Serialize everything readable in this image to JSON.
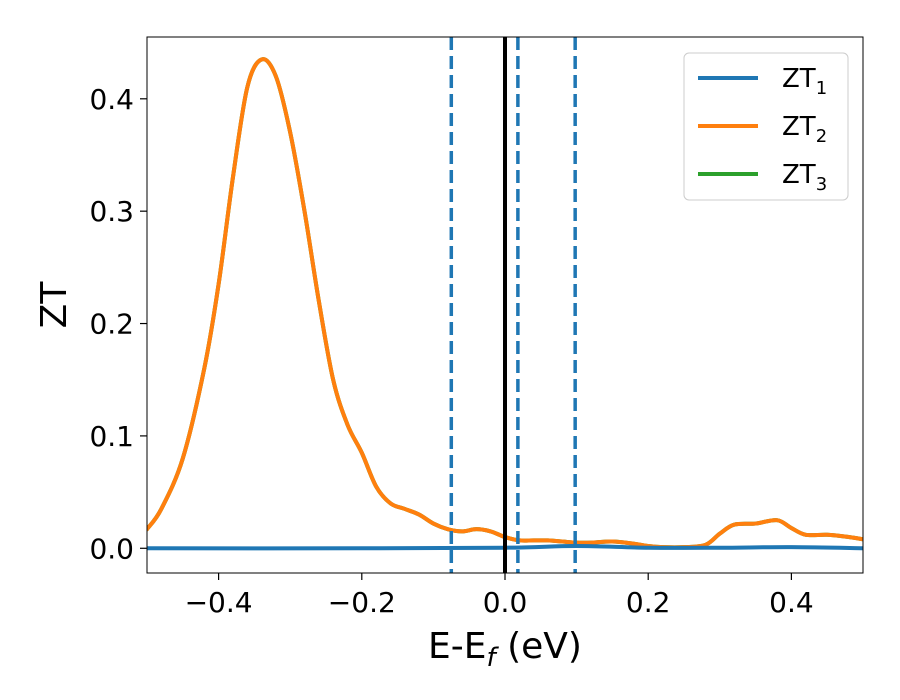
{
  "chart_data": {
    "type": "line",
    "xlabel_main": "E-E",
    "xlabel_sub": "f",
    "xlabel_unit": " (eV)",
    "ylabel": "ZT",
    "xlim": [
      -0.5,
      0.5
    ],
    "ylim": [
      -0.022,
      0.455
    ],
    "x_ticks": [
      {
        "value": -0.4,
        "label": "−0.4"
      },
      {
        "value": -0.2,
        "label": "−0.2"
      },
      {
        "value": 0.0,
        "label": "0.0"
      },
      {
        "value": 0.2,
        "label": "0.2"
      },
      {
        "value": 0.4,
        "label": "0.4"
      }
    ],
    "y_ticks": [
      {
        "value": 0.0,
        "label": "0.0"
      },
      {
        "value": 0.1,
        "label": "0.1"
      },
      {
        "value": 0.2,
        "label": "0.2"
      },
      {
        "value": 0.3,
        "label": "0.3"
      },
      {
        "value": 0.4,
        "label": "0.4"
      }
    ],
    "grid": false,
    "legend_position": "top-right",
    "series": [
      {
        "name_main": "ZT",
        "name_sub": "1",
        "color": "#1f77b4",
        "x": [
          -0.5,
          -0.2,
          0.0,
          0.1,
          0.2,
          0.3,
          0.4,
          0.5
        ],
        "y": [
          0.0,
          0.0,
          0.0005,
          0.002,
          0.0005,
          0.0005,
          0.001,
          0.0
        ]
      },
      {
        "name_main": "ZT",
        "name_sub": "2",
        "color": "#ff7f0e",
        "x": [
          -0.5,
          -0.48,
          -0.45,
          -0.42,
          -0.4,
          -0.38,
          -0.36,
          -0.34,
          -0.32,
          -0.3,
          -0.28,
          -0.26,
          -0.24,
          -0.22,
          -0.2,
          -0.18,
          -0.16,
          -0.14,
          -0.12,
          -0.1,
          -0.08,
          -0.06,
          -0.04,
          -0.02,
          0.0,
          0.02,
          0.04,
          0.06,
          0.08,
          0.1,
          0.12,
          0.15,
          0.18,
          0.2,
          0.22,
          0.25,
          0.28,
          0.3,
          0.32,
          0.35,
          0.38,
          0.4,
          0.42,
          0.45,
          0.48,
          0.5
        ],
        "y": [
          0.017,
          0.035,
          0.08,
          0.16,
          0.235,
          0.33,
          0.41,
          0.435,
          0.42,
          0.37,
          0.3,
          0.22,
          0.15,
          0.11,
          0.085,
          0.055,
          0.04,
          0.035,
          0.03,
          0.022,
          0.017,
          0.015,
          0.017,
          0.015,
          0.01,
          0.007,
          0.007,
          0.007,
          0.006,
          0.005,
          0.005,
          0.006,
          0.004,
          0.002,
          0.001,
          0.001,
          0.003,
          0.013,
          0.021,
          0.022,
          0.025,
          0.018,
          0.012,
          0.012,
          0.01,
          0.008
        ]
      },
      {
        "name_main": "ZT",
        "name_sub": "3",
        "color": "#2ca02c",
        "x": [
          -0.5,
          -0.48,
          -0.45,
          -0.42,
          -0.4,
          -0.38,
          -0.36,
          -0.34,
          -0.32,
          -0.3,
          -0.28,
          -0.26,
          -0.24,
          -0.22,
          -0.2,
          -0.18,
          -0.16,
          -0.14,
          -0.12,
          -0.1,
          -0.08,
          -0.06,
          -0.04,
          -0.02,
          0.0,
          0.02,
          0.04,
          0.06,
          0.08,
          0.1,
          0.12,
          0.15,
          0.18,
          0.2,
          0.22,
          0.25,
          0.28,
          0.3,
          0.32,
          0.35,
          0.38,
          0.4,
          0.42,
          0.45,
          0.48,
          0.5
        ],
        "y": [
          0.017,
          0.035,
          0.08,
          0.16,
          0.235,
          0.33,
          0.41,
          0.435,
          0.42,
          0.37,
          0.3,
          0.22,
          0.15,
          0.11,
          0.085,
          0.055,
          0.04,
          0.035,
          0.03,
          0.022,
          0.017,
          0.015,
          0.017,
          0.015,
          0.01,
          0.007,
          0.007,
          0.007,
          0.006,
          0.005,
          0.005,
          0.006,
          0.004,
          0.002,
          0.001,
          0.001,
          0.003,
          0.013,
          0.021,
          0.022,
          0.025,
          0.018,
          0.012,
          0.012,
          0.01,
          0.008
        ]
      }
    ],
    "vertical_lines": [
      {
        "x": -0.075,
        "color": "#1f77b4",
        "style": "dashed"
      },
      {
        "x": 0.018,
        "color": "#1f77b4",
        "style": "dashed"
      },
      {
        "x": 0.098,
        "color": "#1f77b4",
        "style": "dashed"
      },
      {
        "x": 0.0,
        "color": "#000000",
        "style": "solid"
      }
    ]
  }
}
